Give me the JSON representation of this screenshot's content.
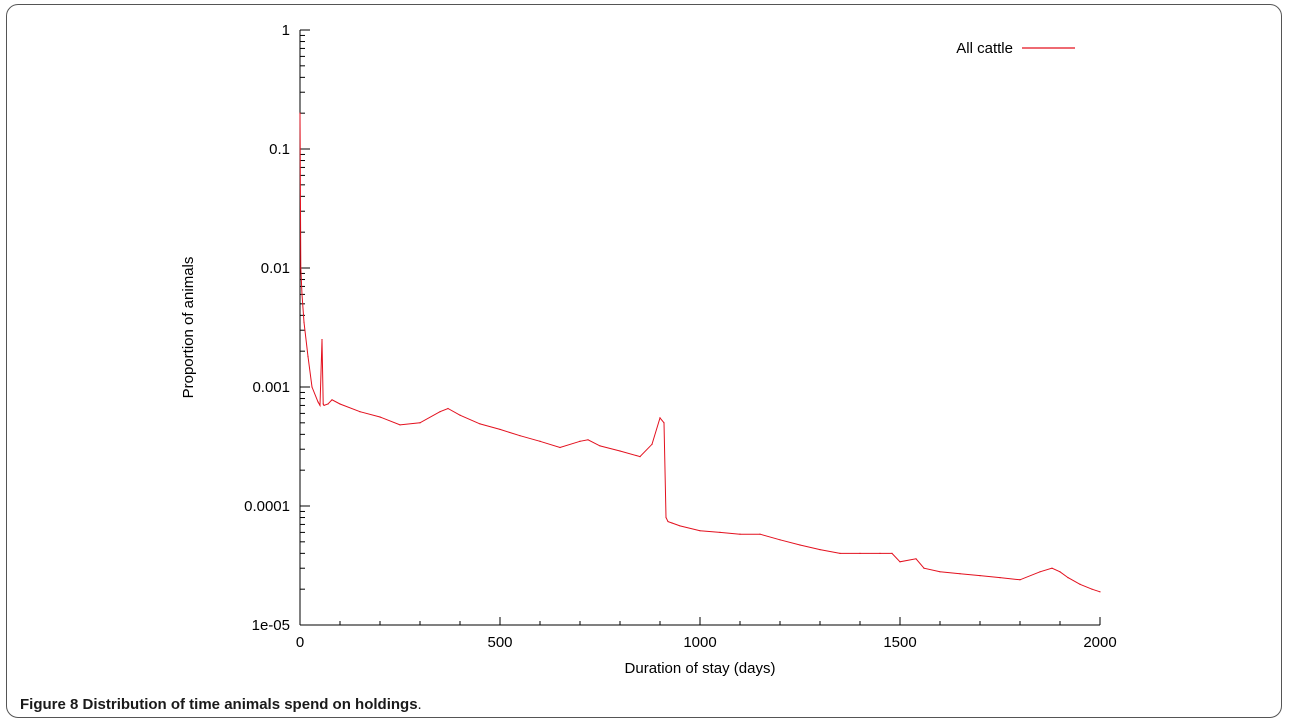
{
  "caption": {
    "label": "Figure 8",
    "text": "Distribution of time animals spend on holdings",
    "end": "."
  },
  "chart_data": {
    "type": "line",
    "xlabel": "Duration of stay (days)",
    "ylabel": "Proportion of animals",
    "xlim": [
      0,
      2000
    ],
    "ylim": [
      1e-05,
      1
    ],
    "yscale": "log",
    "xticks": [
      0,
      500,
      1000,
      1500,
      2000
    ],
    "xtick_labels": [
      "0",
      "500",
      "1000",
      "1500",
      "2000"
    ],
    "yticks": [
      1,
      0.1,
      0.01,
      0.001,
      0.0001,
      1e-05
    ],
    "ytick_labels": [
      "1",
      "0.1",
      "0.01",
      "0.001",
      "0.0001",
      "1e-05"
    ],
    "grid": false,
    "legend": {
      "position": "top-right"
    },
    "series": [
      {
        "name": "All cattle",
        "color": "#e3101e",
        "x": [
          0,
          2,
          5,
          10,
          20,
          30,
          45,
          50,
          55,
          58,
          60,
          70,
          80,
          100,
          150,
          200,
          250,
          300,
          350,
          370,
          400,
          450,
          500,
          550,
          600,
          650,
          700,
          720,
          750,
          800,
          850,
          880,
          900,
          910,
          915,
          920,
          930,
          950,
          1000,
          1050,
          1100,
          1150,
          1200,
          1250,
          1300,
          1350,
          1400,
          1450,
          1480,
          1500,
          1540,
          1560,
          1600,
          1650,
          1700,
          1750,
          1800,
          1850,
          1880,
          1900,
          1920,
          1950,
          1980,
          2000
        ],
        "values": [
          0.2,
          0.01,
          0.006,
          0.0035,
          0.0018,
          0.001,
          0.00075,
          0.0007,
          0.0025,
          0.00072,
          0.0007,
          0.00072,
          0.00078,
          0.00072,
          0.00062,
          0.00056,
          0.00048,
          0.0005,
          0.00062,
          0.00066,
          0.00058,
          0.00049,
          0.00044,
          0.00039,
          0.00035,
          0.00031,
          0.00035,
          0.00036,
          0.00032,
          0.00029,
          0.00026,
          0.00033,
          0.00055,
          0.0005,
          8e-05,
          7.4e-05,
          7.2e-05,
          6.8e-05,
          6.2e-05,
          6e-05,
          5.8e-05,
          5.8e-05,
          5.2e-05,
          4.7e-05,
          4.3e-05,
          4e-05,
          4e-05,
          4e-05,
          4e-05,
          3.4e-05,
          3.6e-05,
          3e-05,
          2.8e-05,
          2.7e-05,
          2.6e-05,
          2.5e-05,
          2.4e-05,
          2.8e-05,
          3e-05,
          2.8e-05,
          2.5e-05,
          2.2e-05,
          2e-05,
          1.9e-05
        ]
      }
    ]
  }
}
